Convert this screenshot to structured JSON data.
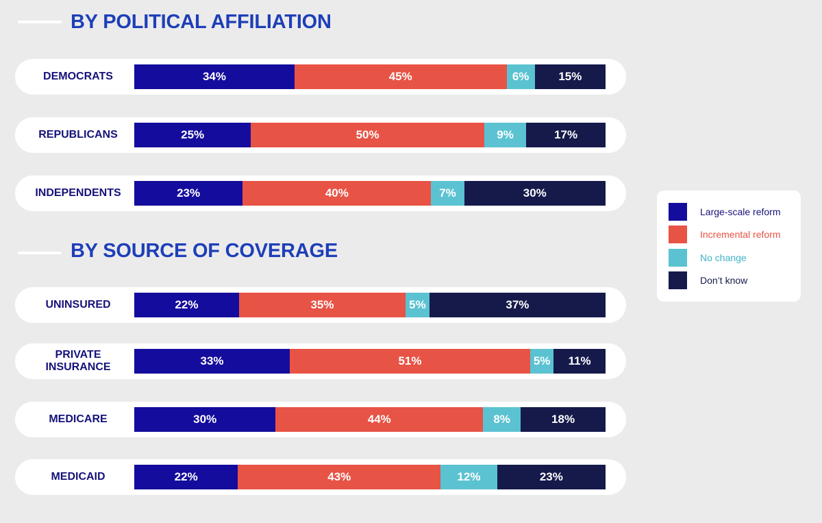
{
  "sections": [
    {
      "title": "BY POLITICAL AFFILIATION"
    },
    {
      "title": "BY SOURCE OF COVERAGE"
    }
  ],
  "colors": {
    "large_scale_reform": "#140c9c",
    "incremental_reform": "#e75345",
    "no_change": "#5bc2d1",
    "dont_know": "#151a4b"
  },
  "legend": {
    "items": [
      {
        "label": "Large-scale reform",
        "color": "#140c9c",
        "text_color": "#15127a"
      },
      {
        "label": "Incremental reform",
        "color": "#e75345",
        "text_color": "#e75345"
      },
      {
        "label": "No change",
        "color": "#5bc2d1",
        "text_color": "#3fb3c8"
      },
      {
        "label": "Don’t know",
        "color": "#151a4b",
        "text_color": "#151a4b"
      }
    ]
  },
  "chart_data": {
    "type": "bar",
    "orientation": "horizontal",
    "stacked": true,
    "legend_position": "right",
    "series": [
      {
        "name": "Large-scale reform",
        "color": "#140c9c"
      },
      {
        "name": "Incremental reform",
        "color": "#e75345"
      },
      {
        "name": "No change",
        "color": "#5bc2d1"
      },
      {
        "name": "Don’t know",
        "color": "#151a4b"
      }
    ],
    "groups": [
      {
        "title": "BY POLITICAL AFFILIATION",
        "rows": [
          {
            "label": "DEMOCRATS",
            "values": [
              34,
              45,
              6,
              15
            ],
            "value_labels": [
              "34%",
              "45%",
              "6%",
              "15%"
            ]
          },
          {
            "label": "REPUBLICANS",
            "values": [
              25,
              50,
              9,
              17
            ],
            "value_labels": [
              "25%",
              "50%",
              "9%",
              "17%"
            ]
          },
          {
            "label": "INDEPENDENTS",
            "values": [
              23,
              40,
              7,
              30
            ],
            "value_labels": [
              "23%",
              "40%",
              "7%",
              "30%"
            ]
          }
        ]
      },
      {
        "title": "BY SOURCE OF COVERAGE",
        "rows": [
          {
            "label": "UNINSURED",
            "values": [
              22,
              35,
              5,
              37
            ],
            "value_labels": [
              "22%",
              "35%",
              "5%",
              "37%"
            ]
          },
          {
            "label": "PRIVATE INSURANCE",
            "values": [
              33,
              51,
              5,
              11
            ],
            "value_labels": [
              "33%",
              "51%",
              "5%",
              "11%"
            ]
          },
          {
            "label": "MEDICARE",
            "values": [
              30,
              44,
              8,
              18
            ],
            "value_labels": [
              "30%",
              "44%",
              "8%",
              "18%"
            ]
          },
          {
            "label": "MEDICAID",
            "values": [
              22,
              43,
              12,
              23
            ],
            "value_labels": [
              "22%",
              "43%",
              "12%",
              "23%"
            ]
          }
        ]
      }
    ]
  }
}
